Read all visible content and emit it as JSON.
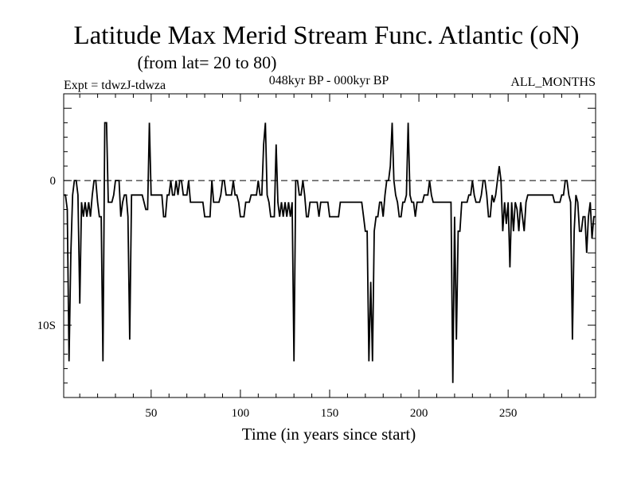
{
  "chart_data": {
    "type": "line",
    "title": "Latitude Max Merid Stream Func. Atlantic (oN)",
    "subtitle": "(from lat= 20 to 80)",
    "experiment": "Expt = tdwzJ-tdwza",
    "period": "048kyr BP - 000kyr BP",
    "months": "ALL_MONTHS",
    "xlabel": "Time (in years since start)",
    "ylabel": "",
    "xlim": [
      1,
      299
    ],
    "ylim": [
      -15,
      6
    ],
    "x_ticks": [
      50,
      100,
      150,
      200,
      250
    ],
    "y_ticks": [
      {
        "value": 0,
        "label": "0"
      },
      {
        "value": -10,
        "label": "10S"
      }
    ],
    "reference_line": {
      "value": 0,
      "style": "dashed"
    },
    "grid": false,
    "series": [
      {
        "color": "#000000",
        "points": [
          [
            1,
            -1
          ],
          [
            2,
            -1
          ],
          [
            3,
            -2
          ],
          [
            4,
            -12.5
          ],
          [
            5,
            -5
          ],
          [
            6,
            -1
          ],
          [
            7,
            0
          ],
          [
            8,
            0
          ],
          [
            9,
            -1
          ],
          [
            10,
            -8.5
          ],
          [
            11,
            -1.5
          ],
          [
            12,
            -2.5
          ],
          [
            13,
            -1.5
          ],
          [
            14,
            -2.5
          ],
          [
            15,
            -1.5
          ],
          [
            16,
            -2.5
          ],
          [
            17,
            -1
          ],
          [
            18,
            0
          ],
          [
            19,
            0
          ],
          [
            20,
            -1.5
          ],
          [
            21,
            -2.5
          ],
          [
            22,
            -2.5
          ],
          [
            23,
            -12.5
          ],
          [
            24,
            4
          ],
          [
            25,
            4
          ],
          [
            26,
            -1.5
          ],
          [
            27,
            -1.5
          ],
          [
            28,
            -1.5
          ],
          [
            29,
            -1
          ],
          [
            30,
            0
          ],
          [
            31,
            0
          ],
          [
            32,
            0
          ],
          [
            33,
            -2.5
          ],
          [
            34,
            -1.5
          ],
          [
            35,
            -1
          ],
          [
            36,
            -1
          ],
          [
            37,
            -2.5
          ],
          [
            38,
            -11
          ],
          [
            39,
            -1
          ],
          [
            40,
            -1
          ],
          [
            41,
            -1
          ],
          [
            42,
            -1
          ],
          [
            43,
            -1
          ],
          [
            44,
            -1
          ],
          [
            45,
            -1
          ],
          [
            46,
            -1.5
          ],
          [
            47,
            -2
          ],
          [
            48,
            -2
          ],
          [
            49,
            4
          ],
          [
            50,
            -1
          ],
          [
            51,
            -1
          ],
          [
            52,
            -1
          ],
          [
            53,
            -1
          ],
          [
            54,
            -1
          ],
          [
            55,
            -1
          ],
          [
            56,
            -1
          ],
          [
            57,
            -2.5
          ],
          [
            58,
            -2.5
          ],
          [
            59,
            -1
          ],
          [
            60,
            -1
          ],
          [
            61,
            0
          ],
          [
            62,
            -1
          ],
          [
            63,
            -1
          ],
          [
            64,
            0
          ],
          [
            65,
            -1
          ],
          [
            66,
            0
          ],
          [
            67,
            0
          ],
          [
            68,
            -1
          ],
          [
            69,
            -1
          ],
          [
            70,
            -1
          ],
          [
            71,
            0
          ],
          [
            72,
            -1.5
          ],
          [
            73,
            -1.5
          ],
          [
            74,
            -1.5
          ],
          [
            75,
            -1.5
          ],
          [
            76,
            -1.5
          ],
          [
            77,
            -1.5
          ],
          [
            78,
            -1.5
          ],
          [
            79,
            -1.5
          ],
          [
            80,
            -2.5
          ],
          [
            81,
            -2.5
          ],
          [
            82,
            -2.5
          ],
          [
            83,
            -2.5
          ],
          [
            84,
            0
          ],
          [
            85,
            -1.5
          ],
          [
            86,
            -1.5
          ],
          [
            87,
            -1.5
          ],
          [
            88,
            -1.5
          ],
          [
            89,
            -1
          ],
          [
            90,
            0
          ],
          [
            91,
            0
          ],
          [
            92,
            -1
          ],
          [
            93,
            -1
          ],
          [
            94,
            -1
          ],
          [
            95,
            -1
          ],
          [
            96,
            0
          ],
          [
            97,
            -1
          ],
          [
            98,
            -1
          ],
          [
            99,
            -1.5
          ],
          [
            100,
            -2.5
          ],
          [
            101,
            -2.5
          ],
          [
            102,
            -2.5
          ],
          [
            103,
            -1.5
          ],
          [
            104,
            -1.5
          ],
          [
            105,
            -1.5
          ],
          [
            106,
            -1
          ],
          [
            107,
            -1
          ],
          [
            108,
            -1
          ],
          [
            109,
            -1
          ],
          [
            110,
            0
          ],
          [
            111,
            -1
          ],
          [
            112,
            -1
          ],
          [
            113,
            2.5
          ],
          [
            114,
            4
          ],
          [
            115,
            -1
          ],
          [
            116,
            -1.5
          ],
          [
            117,
            -2.5
          ],
          [
            118,
            -2.5
          ],
          [
            119,
            -2.5
          ],
          [
            120,
            2.5
          ],
          [
            121,
            -1.5
          ],
          [
            122,
            -2.5
          ],
          [
            123,
            -1.5
          ],
          [
            124,
            -2.5
          ],
          [
            125,
            -1.5
          ],
          [
            126,
            -2.5
          ],
          [
            127,
            -1.5
          ],
          [
            128,
            -2.5
          ],
          [
            129,
            -1.5
          ],
          [
            130,
            -12.5
          ],
          [
            131,
            0
          ],
          [
            132,
            0
          ],
          [
            133,
            -1
          ],
          [
            134,
            -1
          ],
          [
            135,
            0
          ],
          [
            136,
            -1
          ],
          [
            137,
            -2.5
          ],
          [
            138,
            -2.5
          ],
          [
            139,
            -1.5
          ],
          [
            140,
            -1.5
          ],
          [
            141,
            -1.5
          ],
          [
            142,
            -1.5
          ],
          [
            143,
            -1.5
          ],
          [
            144,
            -2.5
          ],
          [
            145,
            -1.5
          ],
          [
            146,
            -1.5
          ],
          [
            147,
            -1.5
          ],
          [
            148,
            -1.5
          ],
          [
            149,
            -1.5
          ],
          [
            150,
            -2.5
          ],
          [
            151,
            -2.5
          ],
          [
            152,
            -2.5
          ],
          [
            153,
            -2.5
          ],
          [
            154,
            -2.5
          ],
          [
            155,
            -2.5
          ],
          [
            156,
            -1.5
          ],
          [
            157,
            -1.5
          ],
          [
            158,
            -1.5
          ],
          [
            159,
            -1.5
          ],
          [
            160,
            -1.5
          ],
          [
            161,
            -1.5
          ],
          [
            162,
            -1.5
          ],
          [
            163,
            -1.5
          ],
          [
            164,
            -1.5
          ],
          [
            165,
            -1.5
          ],
          [
            166,
            -1.5
          ],
          [
            167,
            -1.5
          ],
          [
            168,
            -1.5
          ],
          [
            169,
            -2.5
          ],
          [
            170,
            -3.5
          ],
          [
            171,
            -3.5
          ],
          [
            172,
            -12.5
          ],
          [
            173,
            -7
          ],
          [
            174,
            -12.5
          ],
          [
            175,
            -3.5
          ],
          [
            176,
            -2.5
          ],
          [
            177,
            -2.5
          ],
          [
            178,
            -1.5
          ],
          [
            179,
            -1.5
          ],
          [
            180,
            -2.5
          ],
          [
            181,
            -1
          ],
          [
            182,
            0
          ],
          [
            183,
            0
          ],
          [
            184,
            1
          ],
          [
            185,
            4
          ],
          [
            186,
            0
          ],
          [
            187,
            -1
          ],
          [
            188,
            -1.5
          ],
          [
            189,
            -2.5
          ],
          [
            190,
            -2.5
          ],
          [
            191,
            -1.5
          ],
          [
            192,
            -1.5
          ],
          [
            193,
            -1
          ],
          [
            194,
            4
          ],
          [
            195,
            -1
          ],
          [
            196,
            -1.5
          ],
          [
            197,
            -1.5
          ],
          [
            198,
            -2.5
          ],
          [
            199,
            -1.5
          ],
          [
            200,
            -1.5
          ],
          [
            201,
            -1.5
          ],
          [
            202,
            -1.5
          ],
          [
            203,
            -1
          ],
          [
            204,
            -1
          ],
          [
            205,
            -1
          ],
          [
            206,
            0
          ],
          [
            207,
            -1
          ],
          [
            208,
            -1.5
          ],
          [
            209,
            -1.5
          ],
          [
            210,
            -1.5
          ],
          [
            211,
            -1.5
          ],
          [
            212,
            -1.5
          ],
          [
            213,
            -1.5
          ],
          [
            214,
            -1.5
          ],
          [
            215,
            -1.5
          ],
          [
            216,
            -1.5
          ],
          [
            217,
            -1.5
          ],
          [
            218,
            -1.5
          ],
          [
            219,
            -14
          ],
          [
            220,
            -2.5
          ],
          [
            221,
            -11
          ],
          [
            222,
            -3.5
          ],
          [
            223,
            -3.5
          ],
          [
            224,
            -1.5
          ],
          [
            225,
            -1.5
          ],
          [
            226,
            -1.5
          ],
          [
            227,
            -1.5
          ],
          [
            228,
            -1
          ],
          [
            229,
            -1
          ],
          [
            230,
            0
          ],
          [
            231,
            -1
          ],
          [
            232,
            -1.5
          ],
          [
            233,
            -1.5
          ],
          [
            234,
            -1.5
          ],
          [
            235,
            -1
          ],
          [
            236,
            0
          ],
          [
            237,
            0
          ],
          [
            238,
            -1
          ],
          [
            239,
            -2.5
          ],
          [
            240,
            -2.5
          ],
          [
            241,
            -1
          ],
          [
            242,
            -1.5
          ],
          [
            243,
            -1
          ],
          [
            244,
            0
          ],
          [
            245,
            1
          ],
          [
            246,
            0
          ],
          [
            247,
            -3.5
          ],
          [
            248,
            -1.5
          ],
          [
            249,
            -3
          ],
          [
            250,
            -1.5
          ],
          [
            251,
            -6
          ],
          [
            252,
            -1.5
          ],
          [
            253,
            -3.5
          ],
          [
            254,
            -1.5
          ],
          [
            255,
            -2
          ],
          [
            256,
            -3.5
          ],
          [
            257,
            -1.5
          ],
          [
            258,
            -2.5
          ],
          [
            259,
            -3.5
          ],
          [
            260,
            -1.5
          ],
          [
            261,
            -1
          ],
          [
            262,
            -1
          ],
          [
            263,
            -1
          ],
          [
            264,
            -1
          ],
          [
            265,
            -1
          ],
          [
            266,
            -1
          ],
          [
            267,
            -1
          ],
          [
            268,
            -1
          ],
          [
            269,
            -1
          ],
          [
            270,
            -1
          ],
          [
            271,
            -1
          ],
          [
            272,
            -1
          ],
          [
            273,
            -1
          ],
          [
            274,
            -1
          ],
          [
            275,
            -1
          ],
          [
            276,
            -1.5
          ],
          [
            277,
            -1.5
          ],
          [
            278,
            -1.5
          ],
          [
            279,
            -1.5
          ],
          [
            280,
            -1
          ],
          [
            281,
            -1
          ],
          [
            282,
            0
          ],
          [
            283,
            0
          ],
          [
            284,
            -1
          ],
          [
            285,
            -1.5
          ],
          [
            286,
            -11
          ],
          [
            287,
            -3.5
          ],
          [
            288,
            -1
          ],
          [
            289,
            -1.5
          ],
          [
            290,
            -3.5
          ],
          [
            291,
            -3.5
          ],
          [
            292,
            -2.5
          ],
          [
            293,
            -2.5
          ],
          [
            294,
            -5
          ],
          [
            295,
            -2.5
          ],
          [
            296,
            -1.5
          ],
          [
            297,
            -4
          ],
          [
            298,
            -2.5
          ],
          [
            299,
            -2.5
          ]
        ]
      }
    ]
  }
}
